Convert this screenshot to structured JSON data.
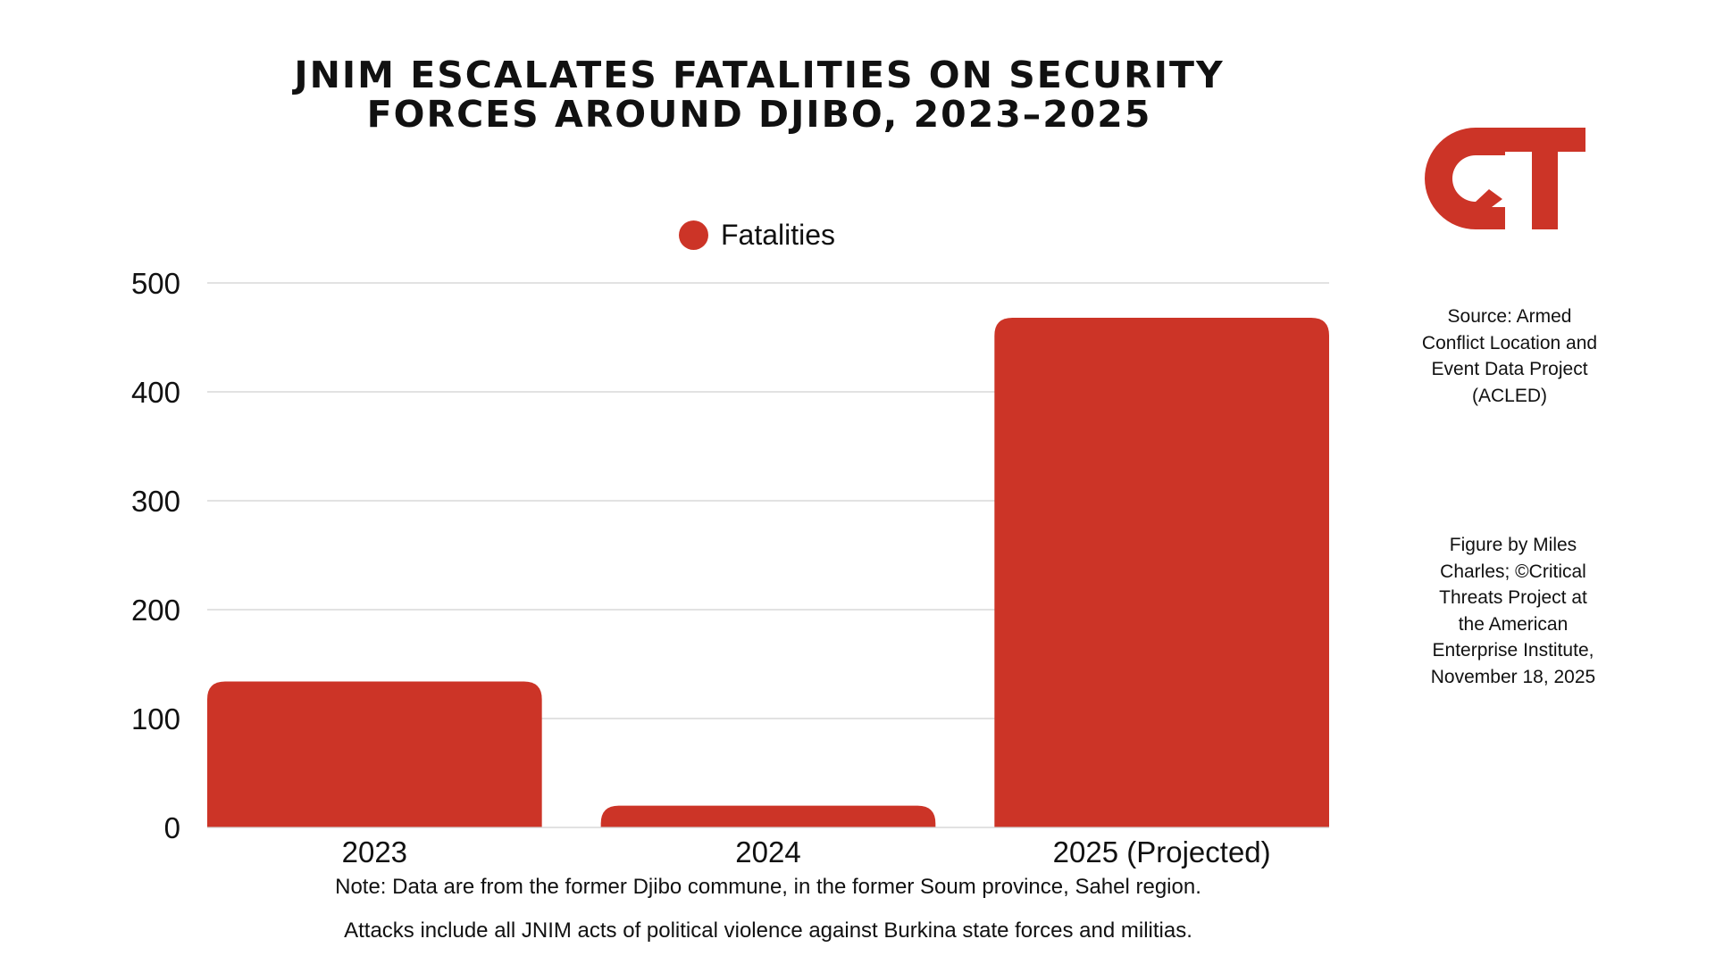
{
  "title_lines": [
    "JNIM ESCALATES FATALITIES ON SECURITY",
    "FORCES AROUND DJIBO, 2023–2025"
  ],
  "colors": {
    "bar": "#cc3427",
    "grid": "#d0d0d0",
    "text": "#111111",
    "logo": "#cc3427"
  },
  "chart_data": {
    "type": "bar",
    "title": "JNIM ESCALATES FATALITIES ON SECURITY FORCES AROUND DJIBO, 2023–2025",
    "categories": [
      "2023",
      "2024",
      "2025 (Projected)"
    ],
    "series": [
      {
        "name": "Fatalities",
        "values": [
          134,
          20,
          468
        ]
      }
    ],
    "xlabel": "",
    "ylabel": "",
    "ylim": [
      0,
      500
    ],
    "yticks": [
      0,
      100,
      200,
      300,
      400,
      500
    ],
    "yticks_labels": [
      "0",
      "100",
      "200",
      "300",
      "400",
      "500"
    ],
    "grid": true,
    "legend": {
      "position": "top-center",
      "label": "Fatalities"
    }
  },
  "logo": {
    "text": "CT"
  },
  "source_text": "Source: Armed Conflict Location and Event Data Project (ACLED)",
  "credit_text": "Figure by Miles Charles; ©Critical Threats Project at the American Enterprise Institute, November 18, 2025",
  "notes": [
    "Note: Data are from the former Djibo commune, in the former Soum province, Sahel region.",
    "Attacks include all JNIM acts of political violence against Burkina state forces and militias."
  ]
}
